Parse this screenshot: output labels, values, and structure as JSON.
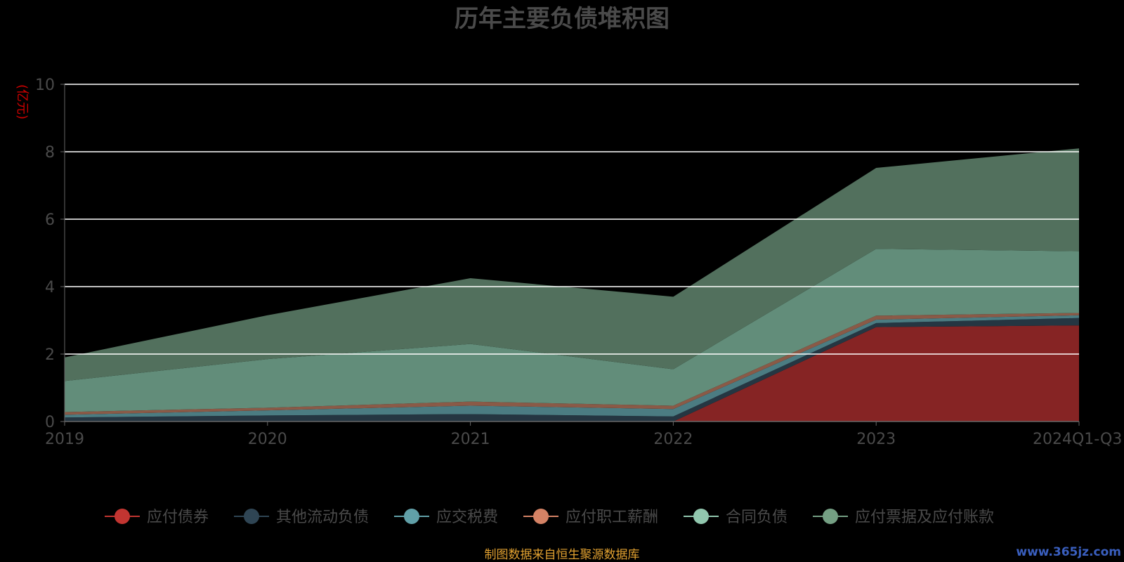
{
  "chart_data": {
    "type": "area",
    "stacked": true,
    "title": "历年主要负债堆积图",
    "unit_label": "(亿元)",
    "categories": [
      "2019",
      "2020",
      "2021",
      "2022",
      "2023",
      "2024Q1-Q3"
    ],
    "ylim": [
      0,
      10
    ],
    "yticks": [
      0,
      2,
      4,
      6,
      8,
      10
    ],
    "grid": true,
    "legend_position": "bottom",
    "series": [
      {
        "name": "应付债券",
        "color": "#c23531",
        "fill": "#862424",
        "values": [
          0,
          0,
          0,
          0,
          2.8,
          2.85
        ]
      },
      {
        "name": "其他流动负债",
        "color": "#2f4554",
        "fill": "#253642",
        "values": [
          0.12,
          0.18,
          0.22,
          0.15,
          0.12,
          0.22
        ]
      },
      {
        "name": "应交税费",
        "color": "#61a0a8",
        "fill": "#4b7c82",
        "values": [
          0.08,
          0.15,
          0.25,
          0.22,
          0.1,
          0.08
        ]
      },
      {
        "name": "应付职工薪酬",
        "color": "#d48265",
        "fill": "#8a5a47",
        "values": [
          0.08,
          0.08,
          0.12,
          0.1,
          0.12,
          0.07
        ]
      },
      {
        "name": "合同负债",
        "color": "#91c7ae",
        "fill": "#628d7a",
        "values": [
          0.92,
          1.44,
          1.71,
          1.08,
          1.98,
          1.83
        ]
      },
      {
        "name": "应付票据及应付账款",
        "color": "#749f83",
        "fill": "#52705d",
        "values": [
          0.7,
          1.3,
          1.95,
          2.15,
          2.4,
          3.05
        ]
      }
    ],
    "source_note": "制图数据来自恒生聚源数据库",
    "watermark": "www.365jz.com"
  }
}
